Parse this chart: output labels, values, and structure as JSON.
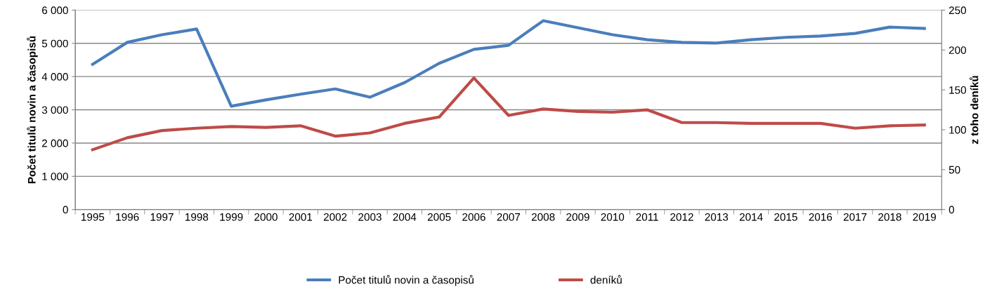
{
  "chart_data": {
    "type": "line",
    "ylabel": "Počet titulů novin a časopisů",
    "y2label": "z toho deníků",
    "categories": [
      "1995",
      "1996",
      "1997",
      "1998",
      "1999",
      "2000",
      "2001",
      "2002",
      "2003",
      "2004",
      "2005",
      "2006",
      "2007",
      "2008",
      "2009",
      "2010",
      "2011",
      "2012",
      "2013",
      "2014",
      "2015",
      "2016",
      "2017",
      "2018",
      "2019"
    ],
    "series": [
      {
        "name": "Počet titulů novin a časopisů",
        "color": "#4a7ebb",
        "values": [
          4370,
          5030,
          5260,
          5430,
          3110,
          3300,
          3470,
          3630,
          3380,
          3820,
          4400,
          4820,
          4940,
          5680,
          5470,
          5260,
          5110,
          5030,
          5010,
          5110,
          5180,
          5220,
          5300,
          5490,
          5450
        ]
      },
      {
        "name": "deníků",
        "color": "#be4b48",
        "axis": "y2",
        "values": [
          75,
          90,
          99,
          102,
          104,
          103,
          105,
          92,
          96,
          108,
          116,
          165,
          118,
          126,
          123,
          122,
          125,
          109,
          109,
          108,
          108,
          108,
          102,
          105,
          106
        ]
      }
    ],
    "ylim": [
      0,
      6000
    ],
    "yticks": [
      0,
      {
        "value": 1000,
        "label": "1 000"
      },
      {
        "value": 2000,
        "label": "2 000"
      },
      {
        "value": 3000,
        "label": "3 000"
      },
      {
        "value": 4000,
        "label": "4 000"
      },
      {
        "value": 5000,
        "label": "5 000"
      },
      {
        "value": 6000,
        "label": "6 000"
      }
    ],
    "y2lim": [
      0,
      250
    ],
    "y2ticks": [
      0,
      50,
      100,
      150,
      200,
      250
    ],
    "grid": "y",
    "legend": "bottom",
    "marker": "none",
    "line_style": "solid"
  }
}
